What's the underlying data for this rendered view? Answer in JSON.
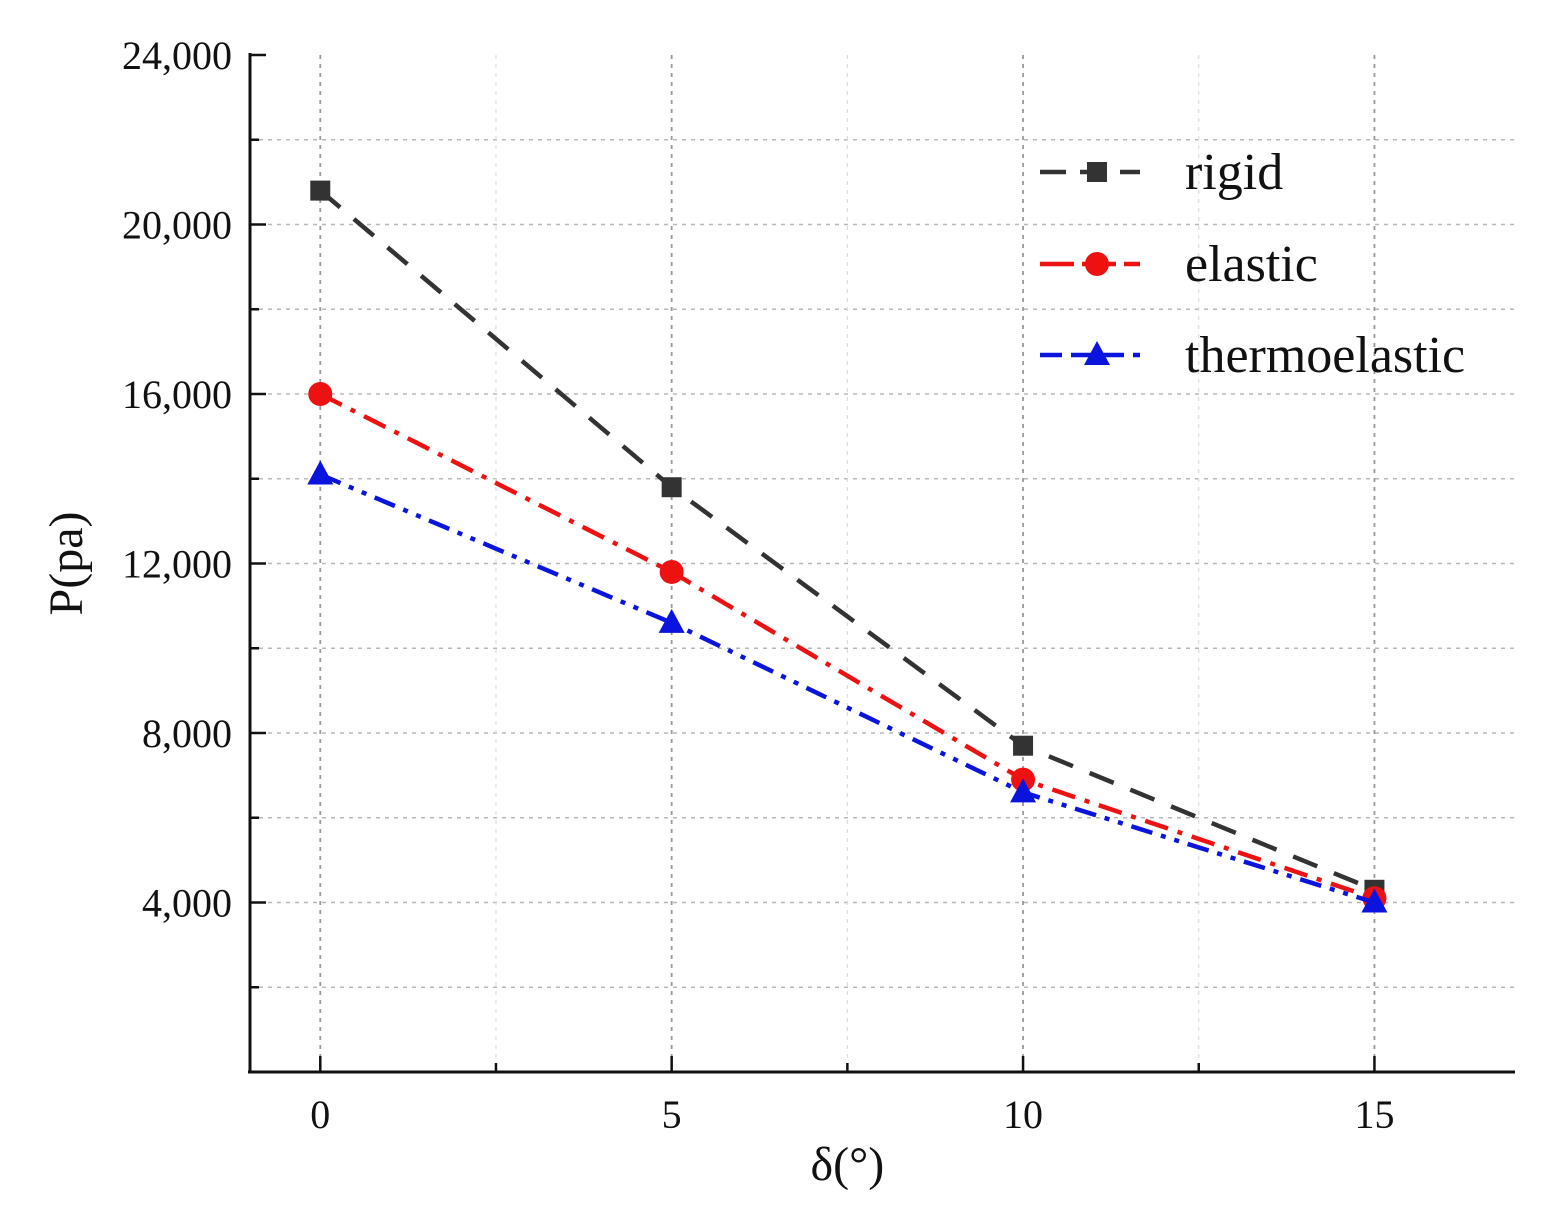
{
  "chart_data": {
    "type": "line",
    "title": "",
    "xlabel": "δ(°)",
    "ylabel": "P(pa)",
    "xlim": [
      -1,
      17
    ],
    "ylim": [
      0,
      24000
    ],
    "x": [
      0,
      5,
      10,
      15
    ],
    "x_ticks": [
      0,
      5,
      10,
      15
    ],
    "x_tick_labels": [
      "0",
      "5",
      "10",
      "15"
    ],
    "y_ticks": [
      4000,
      8000,
      12000,
      16000,
      20000,
      24000
    ],
    "y_tick_labels": [
      "4,000",
      "8,000",
      "12,000",
      "16,000",
      "20,000",
      "24,000"
    ],
    "grid": true,
    "legend_position": "top-right",
    "series": [
      {
        "name": "rigid",
        "values": [
          20800,
          13800,
          7700,
          4300
        ],
        "color": "#333333",
        "marker": "square",
        "line_style": "dashed"
      },
      {
        "name": "elastic",
        "values": [
          16000,
          11800,
          6900,
          4100
        ],
        "color": "#ee1111",
        "marker": "circle",
        "line_style": "dash-dot"
      },
      {
        "name": "thermoelastic",
        "values": [
          14100,
          10600,
          6600,
          4000
        ],
        "color": "#0a14dc",
        "marker": "triangle",
        "line_style": "dash-dot-dot"
      }
    ]
  }
}
